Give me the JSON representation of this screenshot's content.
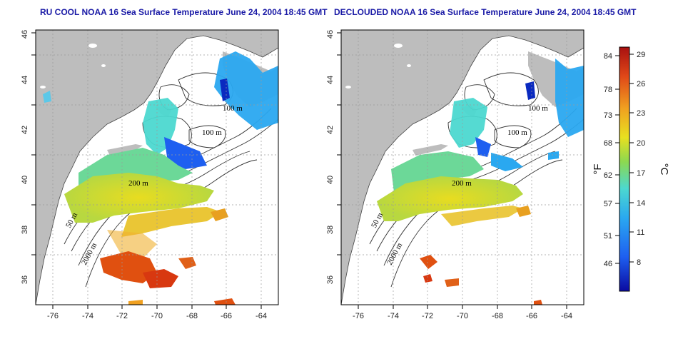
{
  "titles": {
    "left": "RU COOL NOAA 16 Sea Surface Temperature June 24, 2004 18:45 GMT",
    "right": "DECLOUDED NOAA 16 Sea Surface Temperature June 24, 2004 18:45 GMT"
  },
  "axes": {
    "lon_ticks": [
      "-76",
      "-74",
      "-72",
      "-70",
      "-68",
      "-66",
      "-64"
    ],
    "lat_ticks": [
      "36",
      "38",
      "40",
      "42",
      "44",
      "46"
    ],
    "lon_range": [
      -77,
      -63
    ],
    "lat_range": [
      35,
      46
    ],
    "grid": true
  },
  "contour_labels": {
    "c100a": "100 m",
    "c100b": "100 m",
    "c50": "50 m",
    "c200": "200 m",
    "c2000": "2000 m"
  },
  "colorbar": {
    "fahrenheit_ticks": [
      "84",
      "78",
      "73",
      "68",
      "62",
      "57",
      "51",
      "46"
    ],
    "celsius_ticks": [
      "29",
      "26",
      "23",
      "20",
      "17",
      "14",
      "11",
      "8"
    ],
    "fahrenheit_unit": "°F",
    "celsius_unit": "°C",
    "colors": [
      "#0a0aa0",
      "#1e5ff0",
      "#2aa8f0",
      "#4cd8d0",
      "#8cd850",
      "#e8e020",
      "#f0a020",
      "#e04818",
      "#a81010"
    ]
  }
}
